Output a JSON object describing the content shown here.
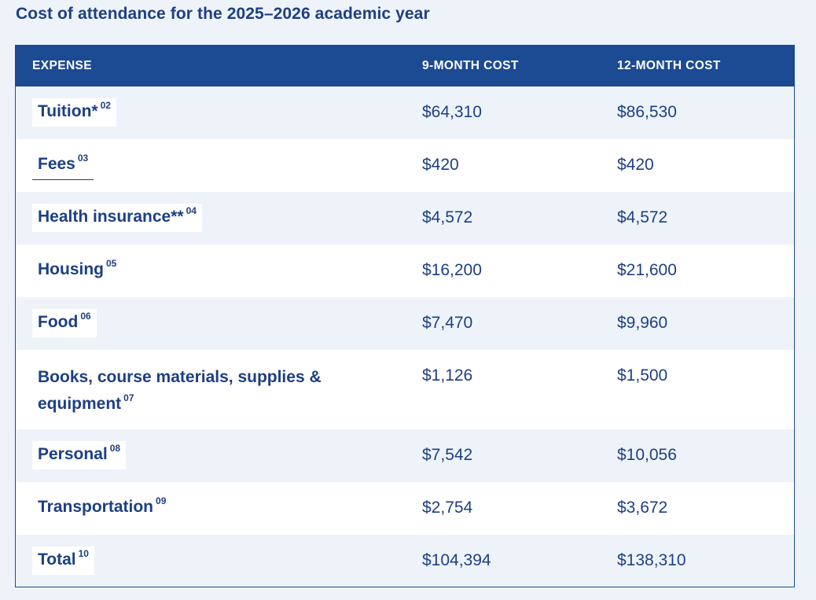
{
  "title": "Cost of attendance for the 2025–2026 academic year",
  "columns": {
    "expense": "EXPENSE",
    "nine_month": "9-MONTH COST",
    "twelve_month": "12-MONTH COST"
  },
  "rows": [
    {
      "label": "Tuition*",
      "note": "02",
      "nine_month": "$64,310",
      "twelve_month": "$86,530"
    },
    {
      "label": "Fees",
      "note": "03",
      "nine_month": "$420",
      "twelve_month": "$420"
    },
    {
      "label": "Health insurance**",
      "note": "04",
      "nine_month": "$4,572",
      "twelve_month": "$4,572"
    },
    {
      "label": "Housing",
      "note": "05",
      "nine_month": "$16,200",
      "twelve_month": "$21,600"
    },
    {
      "label": "Food",
      "note": "06",
      "nine_month": "$7,470",
      "twelve_month": "$9,960"
    },
    {
      "label_line1": "Books, course materials, supplies &",
      "label_line2": "equipment",
      "note": "07",
      "nine_month": "$1,126",
      "twelve_month": "$1,500"
    },
    {
      "label": "Personal",
      "note": "08",
      "nine_month": "$7,542",
      "twelve_month": "$10,056"
    },
    {
      "label": "Transportation",
      "note": "09",
      "nine_month": "$2,754",
      "twelve_month": "$3,672"
    },
    {
      "label": "Total",
      "note": "10",
      "nine_month": "$104,394",
      "twelve_month": "$138,310"
    }
  ]
}
